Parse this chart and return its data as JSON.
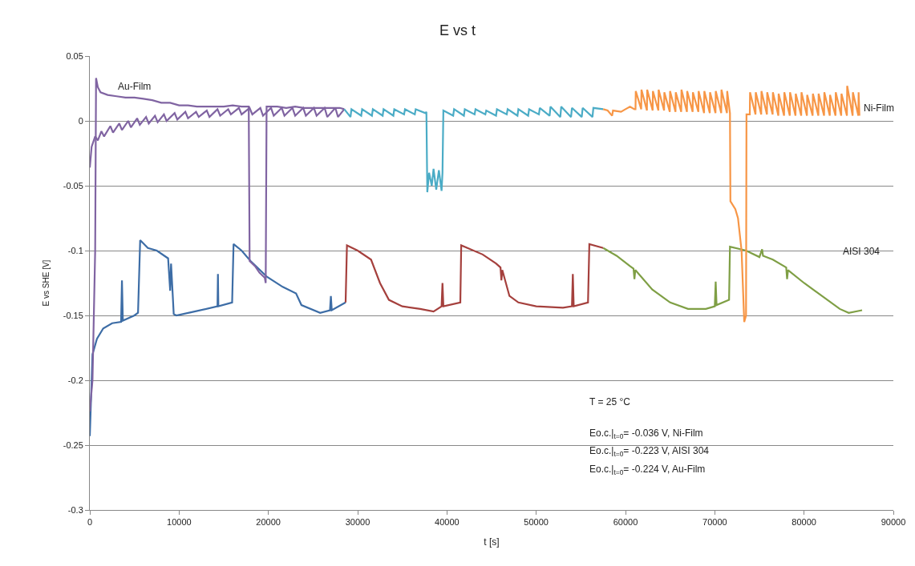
{
  "chart_data": {
    "type": "line",
    "title": "E vs t",
    "xlabel": "t [s]",
    "ylabel": "E vs SHE [V]",
    "xlim": [
      0,
      90000
    ],
    "xticks": [
      0,
      10000,
      20000,
      30000,
      40000,
      50000,
      60000,
      70000,
      80000,
      90000
    ],
    "ylim": [
      -0.3,
      0.05
    ],
    "yticks": [
      -0.3,
      -0.25,
      -0.2,
      -0.15,
      -0.1,
      -0.05,
      0,
      0.05
    ],
    "grid": "y",
    "marker": "none",
    "line_style": "solid",
    "series": [
      {
        "color": "#3d6da6",
        "x": [
          0,
          300,
          800,
          1500,
          2500,
          3500,
          3600,
          3700,
          5000,
          5400,
          5640,
          6500,
          7500,
          8770,
          9000,
          9100,
          9400,
          9700,
          11730,
          14300,
          14350,
          14400,
          15940,
          16100,
          17000,
          18000,
          19800,
          21600,
          23100,
          23700,
          25800,
          26900,
          27000,
          27100,
          28650
        ],
        "values": [
          -0.243,
          -0.18,
          -0.168,
          -0.16,
          -0.156,
          -0.155,
          -0.123,
          -0.154,
          -0.15,
          -0.148,
          -0.092,
          -0.098,
          -0.1,
          -0.106,
          -0.131,
          -0.11,
          -0.149,
          -0.15,
          -0.147,
          -0.143,
          -0.118,
          -0.143,
          -0.14,
          -0.095,
          -0.1,
          -0.108,
          -0.12,
          -0.128,
          -0.133,
          -0.142,
          -0.148,
          -0.146,
          -0.135,
          -0.146,
          -0.14
        ]
      },
      {
        "color": "#a5403d",
        "x": [
          28650,
          28800,
          30000,
          31500,
          32500,
          33500,
          35000,
          37000,
          38500,
          39400,
          39500,
          39600,
          41500,
          41600,
          44000,
          45500,
          46000,
          46100,
          46200,
          47000,
          48000,
          50000,
          53000,
          54000,
          54100,
          54200,
          55800,
          55950,
          57500
        ],
        "values": [
          -0.14,
          -0.096,
          -0.1,
          -0.107,
          -0.125,
          -0.138,
          -0.143,
          -0.145,
          -0.147,
          -0.143,
          -0.125,
          -0.143,
          -0.14,
          -0.096,
          -0.103,
          -0.11,
          -0.113,
          -0.123,
          -0.115,
          -0.135,
          -0.14,
          -0.143,
          -0.144,
          -0.143,
          -0.118,
          -0.143,
          -0.14,
          -0.095,
          -0.098
        ]
      },
      {
        "color": "#7f9f45",
        "x": [
          57500,
          59000,
          60500,
          60900,
          61000,
          61100,
          63000,
          65000,
          67000,
          69000,
          70000,
          70100,
          70200,
          71600,
          71700,
          73500,
          75000,
          75300,
          75400,
          76500,
          78000,
          78100,
          78200,
          80000,
          82000,
          84000,
          85000,
          86500
        ],
        "values": [
          -0.098,
          -0.104,
          -0.112,
          -0.114,
          -0.122,
          -0.115,
          -0.13,
          -0.14,
          -0.145,
          -0.145,
          -0.143,
          -0.124,
          -0.142,
          -0.138,
          -0.097,
          -0.1,
          -0.105,
          -0.099,
          -0.104,
          -0.107,
          -0.113,
          -0.122,
          -0.115,
          -0.125,
          -0.135,
          -0.145,
          -0.148,
          -0.146
        ]
      },
      {
        "color": "#8064a2",
        "x": [
          0,
          300,
          600,
          700,
          900,
          1200,
          2000,
          3000,
          4000,
          5000,
          6000,
          7000,
          8000,
          9000,
          10000,
          11000,
          12000,
          13000,
          14000,
          15000,
          16000,
          17000,
          17800,
          17900,
          18500,
          19000,
          19600,
          19700,
          19800,
          21000,
          22000,
          23000,
          24000,
          25000,
          26000,
          27000,
          28000,
          28500
        ],
        "values": [
          -0.224,
          -0.2,
          -0.1,
          0.033,
          0.026,
          0.022,
          0.02,
          0.019,
          0.018,
          0.018,
          0.017,
          0.016,
          0.014,
          0.014,
          0.012,
          0.012,
          0.011,
          0.011,
          0.011,
          0.011,
          0.012,
          0.011,
          0.011,
          -0.108,
          -0.112,
          -0.117,
          -0.121,
          -0.125,
          0.011,
          0.011,
          0.01,
          0.011,
          0.01,
          0.01,
          0.01,
          0.01,
          0.01,
          0.009
        ]
      },
      {
        "color": "#8064a2",
        "x": [
          0,
          200,
          600,
          900,
          1300,
          1600,
          2300,
          2600,
          3300,
          3600,
          4300,
          4600,
          5300,
          5600,
          6300,
          6600,
          7300,
          7600,
          8300,
          8600,
          9500,
          9800,
          10700,
          11000,
          11900,
          12200,
          13100,
          13400,
          14300,
          14600,
          15500,
          15800,
          16700,
          17000,
          17900,
          18200,
          19100,
          19400,
          20300,
          20600,
          21500,
          21800,
          22700,
          23000,
          23900,
          24200,
          25100,
          25400,
          26300,
          26600,
          27500,
          27800,
          28500
        ],
        "values": [
          -0.036,
          -0.02,
          -0.012,
          -0.015,
          -0.008,
          -0.012,
          -0.004,
          -0.009,
          -0.002,
          -0.007,
          0.0,
          -0.005,
          0.002,
          -0.003,
          0.003,
          -0.002,
          0.004,
          -0.001,
          0.005,
          0.0,
          0.006,
          0.001,
          0.007,
          0.002,
          0.007,
          0.003,
          0.008,
          0.003,
          0.009,
          0.004,
          0.009,
          0.005,
          0.01,
          0.005,
          0.01,
          0.005,
          0.01,
          0.004,
          0.01,
          0.004,
          0.01,
          0.004,
          0.01,
          0.004,
          0.01,
          0.004,
          0.01,
          0.004,
          0.01,
          0.003,
          0.01,
          0.003,
          0.009
        ]
      },
      {
        "color": "#4bacc6",
        "x": [
          28500,
          29200,
          29300,
          30400,
          30500,
          31600,
          31700,
          32800,
          32900,
          34000,
          34100,
          35200,
          35300,
          36400,
          36500,
          37600,
          37700,
          37800,
          38000,
          38300,
          38500,
          38800,
          39100,
          39400,
          39500,
          39600,
          40700,
          40800,
          41900,
          42000,
          43100,
          43200,
          44300,
          44400,
          45500,
          45600,
          46700,
          46800,
          47900,
          48000,
          49100,
          49200,
          50300,
          50400,
          51500,
          51600,
          52700,
          52800,
          53900,
          54000,
          55100,
          55200,
          56300,
          56400,
          57500
        ],
        "values": [
          0.009,
          0.003,
          0.009,
          0.004,
          0.009,
          0.004,
          0.009,
          0.004,
          0.009,
          0.004,
          0.009,
          0.005,
          0.009,
          0.005,
          0.009,
          0.006,
          0.007,
          -0.055,
          -0.04,
          -0.05,
          -0.037,
          -0.053,
          -0.038,
          -0.054,
          -0.04,
          0.008,
          0.004,
          0.009,
          0.004,
          0.009,
          0.005,
          0.009,
          0.005,
          0.008,
          0.004,
          0.009,
          0.005,
          0.009,
          0.004,
          0.009,
          0.004,
          0.009,
          0.005,
          0.01,
          0.004,
          0.011,
          0.003,
          0.011,
          0.003,
          0.01,
          0.003,
          0.01,
          0.003,
          0.01,
          0.009
        ]
      },
      {
        "color": "#f79646",
        "x": [
          57500,
          58000,
          58500,
          58600,
          59500,
          60000,
          60500,
          61000,
          61120,
          61150,
          61760,
          61790,
          62400,
          62430,
          63040,
          63070,
          63680,
          63710,
          64320,
          64350,
          64960,
          64990,
          65600,
          65630,
          66240,
          66270,
          66880,
          66910,
          67520,
          67550,
          68160,
          68190,
          68800,
          68830,
          69440,
          69470,
          70080,
          70110,
          70720,
          70750,
          71360,
          71390,
          71700,
          71750,
          72300,
          72600,
          73000,
          73300,
          73500,
          73550,
          73920,
          73950,
          74560,
          74590,
          75200,
          75230,
          75840,
          75870,
          76480,
          76510,
          77120,
          77150,
          77760,
          77790,
          78400,
          78430,
          79040,
          79070,
          79680,
          79710,
          80320,
          80350,
          80960,
          80990,
          81600,
          81630,
          82240,
          82270,
          82880,
          82910,
          83520,
          83550,
          84160,
          84190,
          84800,
          84830,
          85440,
          85470,
          86080,
          86110,
          86200
        ],
        "values": [
          0.009,
          0.008,
          0.004,
          0.008,
          0.007,
          0.009,
          0.011,
          0.009,
          0.009,
          0.023,
          0.009,
          0.024,
          0.008,
          0.024,
          0.008,
          0.023,
          0.008,
          0.024,
          0.008,
          0.022,
          0.007,
          0.023,
          0.007,
          0.022,
          0.007,
          0.024,
          0.007,
          0.023,
          0.007,
          0.022,
          0.007,
          0.023,
          0.006,
          0.023,
          0.006,
          0.022,
          0.006,
          0.023,
          0.006,
          0.024,
          0.006,
          0.023,
          0.006,
          -0.062,
          -0.068,
          -0.075,
          -0.1,
          -0.155,
          -0.15,
          0.005,
          0.005,
          0.022,
          0.005,
          0.022,
          0.005,
          0.023,
          0.005,
          0.022,
          0.005,
          0.022,
          0.004,
          0.021,
          0.004,
          0.022,
          0.004,
          0.022,
          0.004,
          0.021,
          0.004,
          0.022,
          0.004,
          0.02,
          0.004,
          0.021,
          0.004,
          0.021,
          0.004,
          0.022,
          0.004,
          0.02,
          0.004,
          0.022,
          0.004,
          0.021,
          0.004,
          0.027,
          0.004,
          0.022,
          0.004,
          0.022,
          0.004
        ]
      }
    ],
    "annotations": [
      {
        "text": "Au-Film",
        "x": 3000,
        "y": 0.02
      },
      {
        "text": "Ni-Film",
        "x": 86500,
        "y": 0.003
      },
      "AISI 304",
      "T = 25 °C",
      "Eo.c.|$_{t=0}$= -0.036 V, Ni-Film",
      "Eo.c.|$_{t=0}$= -0.223 V, AISI 304",
      "Eo.c.|$_{t=0}$= -0.224 V, Au-Film"
    ]
  }
}
